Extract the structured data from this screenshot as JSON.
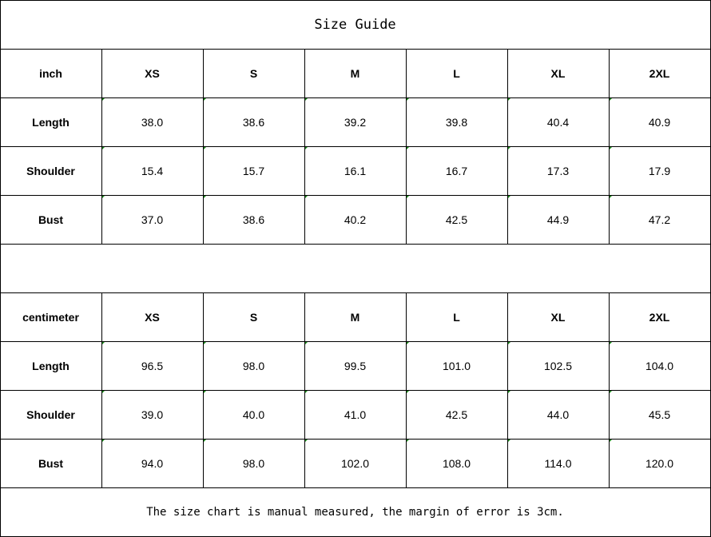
{
  "title": "Size Guide",
  "tables": [
    {
      "unit": "inch",
      "sizes": [
        "XS",
        "S",
        "M",
        "L",
        "XL",
        "2XL"
      ],
      "rows": [
        {
          "label": "Length",
          "values": [
            "38.0",
            "38.6",
            "39.2",
            "39.8",
            "40.4",
            "40.9"
          ]
        },
        {
          "label": "Shoulder",
          "values": [
            "15.4",
            "15.7",
            "16.1",
            "16.7",
            "17.3",
            "17.9"
          ]
        },
        {
          "label": "Bust",
          "values": [
            "37.0",
            "38.6",
            "40.2",
            "42.5",
            "44.9",
            "47.2"
          ]
        }
      ]
    },
    {
      "unit": "centimeter",
      "sizes": [
        "XS",
        "S",
        "M",
        "L",
        "XL",
        "2XL"
      ],
      "rows": [
        {
          "label": "Length",
          "values": [
            "96.5",
            "98.0",
            "99.5",
            "101.0",
            "102.5",
            "104.0"
          ]
        },
        {
          "label": "Shoulder",
          "values": [
            "39.0",
            "40.0",
            "41.0",
            "42.5",
            "44.0",
            "45.5"
          ]
        },
        {
          "label": "Bust",
          "values": [
            "94.0",
            "98.0",
            "102.0",
            "108.0",
            "114.0",
            "120.0"
          ]
        }
      ]
    }
  ],
  "note": "The size chart is manual measured, the margin of error is 3cm.",
  "colors": {
    "marker": "#1a8a1a",
    "border": "#000000"
  }
}
